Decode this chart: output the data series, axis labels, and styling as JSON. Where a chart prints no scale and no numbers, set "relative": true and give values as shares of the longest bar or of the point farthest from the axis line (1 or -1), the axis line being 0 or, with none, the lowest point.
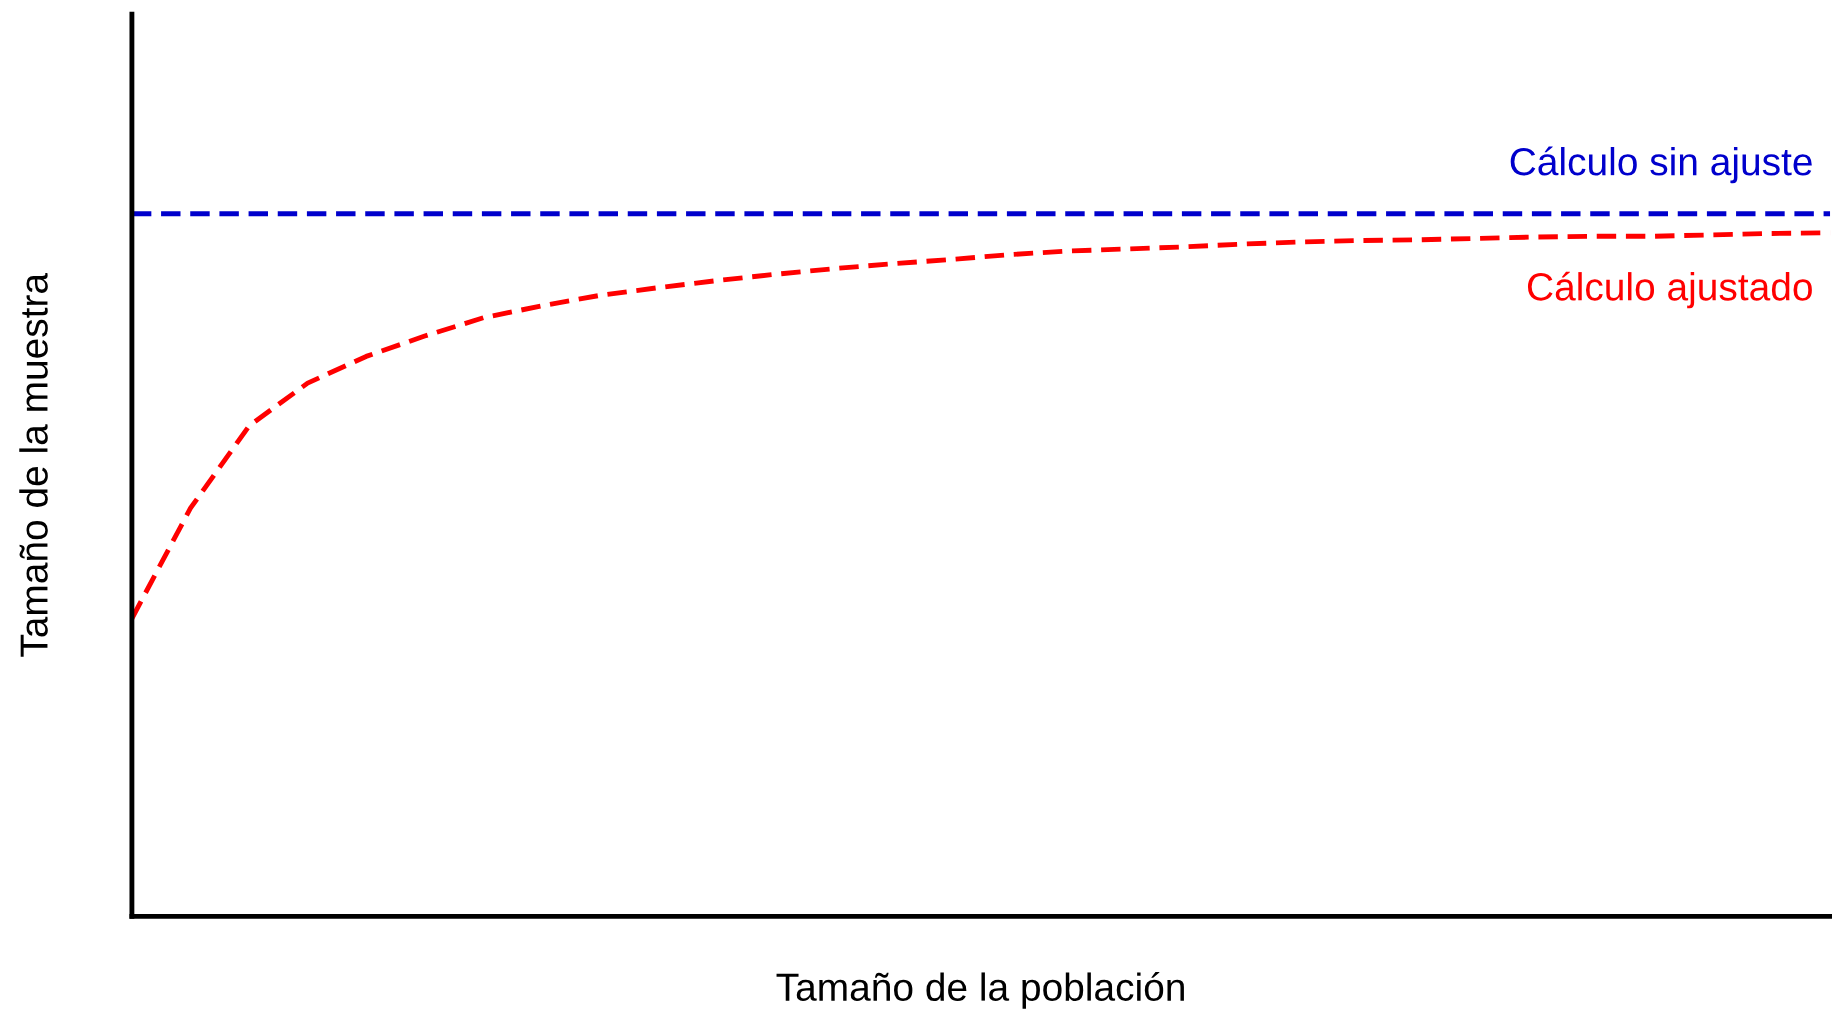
{
  "chart_data": {
    "type": "line",
    "relative": true,
    "xlabel": "Tamaño de la población",
    "ylabel": "Tamaño de la muestra",
    "categories": [
      null,
      null,
      null,
      null,
      null,
      null,
      null,
      null,
      null,
      null,
      null,
      null,
      null,
      null,
      null,
      null,
      null,
      null,
      null,
      null,
      null,
      null,
      null,
      null,
      null,
      null,
      null,
      null,
      null,
      null
    ],
    "series": [
      {
        "name": "Cálculo sin ajuste",
        "color": "#0000cc",
        "values": [
          1,
          1,
          1,
          1,
          1,
          1,
          1,
          1,
          1,
          1,
          1,
          1,
          1,
          1,
          1,
          1,
          1,
          1,
          1,
          1,
          1,
          1,
          1,
          1,
          1,
          1,
          1,
          1,
          1,
          1
        ]
      },
      {
        "name": "Cálculo ajustado",
        "color": "#ff0000",
        "values": [
          0.424,
          0.581,
          0.698,
          0.759,
          0.797,
          0.826,
          0.852,
          0.869,
          0.884,
          0.895,
          0.905,
          0.914,
          0.922,
          0.929,
          0.935,
          0.942,
          0.947,
          0.95,
          0.953,
          0.957,
          0.96,
          0.962,
          0.963,
          0.965,
          0.967,
          0.968,
          0.968,
          0.97,
          0.972,
          0.973
        ]
      }
    ],
    "line_style": "dashed",
    "marker": "none",
    "legend": false
  }
}
